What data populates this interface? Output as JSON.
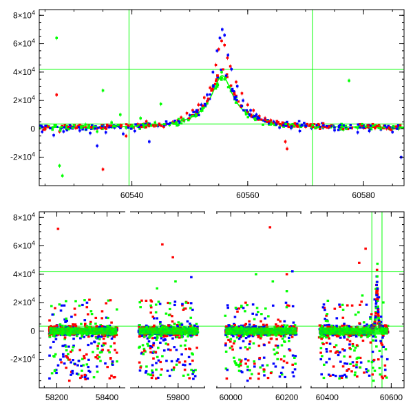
{
  "colors": {
    "red": "#ff0000",
    "blue": "#0000ff",
    "green": "#00ff00",
    "fit": "#00ff00",
    "frame": "#000000"
  },
  "chart_data": [
    {
      "id": "top-panel",
      "type": "scatter",
      "title": "",
      "xlabel": "",
      "ylabel": "",
      "xlim": [
        60524,
        60587
      ],
      "ylim": [
        -40000,
        84000
      ],
      "xticks_major": [
        60540,
        60560,
        60580
      ],
      "xticks_minor_step": 5,
      "yticks": [
        {
          "value": -20000,
          "mant": "-2",
          "exp": "4"
        },
        {
          "value": 0,
          "mant": "0",
          "exp": ""
        },
        {
          "value": 20000,
          "mant": "2",
          "exp": "4"
        },
        {
          "value": 40000,
          "mant": "4",
          "exp": "4"
        },
        {
          "value": 60000,
          "mant": "6",
          "exp": "4"
        },
        {
          "value": 80000,
          "mant": "8",
          "exp": "4"
        }
      ],
      "yminor_step": 5000,
      "reference_lines": {
        "horizontal": [
          42000,
          3500
        ],
        "vertical": [
          60539.5,
          60571.2
        ]
      },
      "fit_curve": {
        "t0": 60555.6,
        "u0": 0.18,
        "tE": 9.5,
        "base": 1000,
        "fs": 7900
      },
      "series": [
        {
          "color": "red",
          "points": [
            [
              60525,
              -300
            ],
            [
              60526.2,
              500
            ],
            [
              60527,
              24000
            ],
            [
              60527.5,
              -1800
            ],
            [
              60529,
              800
            ],
            [
              60530.3,
              600
            ],
            [
              60532,
              1200
            ],
            [
              60533.5,
              300
            ],
            [
              60535,
              -28500
            ],
            [
              60536.5,
              1800
            ],
            [
              60538,
              2400
            ],
            [
              60539,
              -5000
            ],
            [
              60541,
              3200
            ],
            [
              60542.5,
              5200
            ],
            [
              60544,
              2800
            ],
            [
              60545.5,
              1500
            ],
            [
              60547,
              4500
            ],
            [
              60548.5,
              8000
            ],
            [
              60549.5,
              11000
            ],
            [
              60550.5,
              13000
            ],
            [
              60551.5,
              17000
            ],
            [
              60552.5,
              22000
            ],
            [
              60553.5,
              29000
            ],
            [
              60554.5,
              45000
            ],
            [
              60555,
              56000
            ],
            [
              60555.5,
              62000
            ],
            [
              60556,
              59000
            ],
            [
              60556.5,
              50000
            ],
            [
              60557,
              44000
            ],
            [
              60558,
              33000
            ],
            [
              60559,
              25000
            ],
            [
              60560,
              17000
            ],
            [
              60561,
              13000
            ],
            [
              60562,
              9000
            ],
            [
              60563,
              7500
            ],
            [
              60564,
              6000
            ],
            [
              60565,
              4200
            ],
            [
              60566,
              3000
            ],
            [
              60566.5,
              -9000
            ],
            [
              60566.8,
              -14000
            ],
            [
              60568,
              2500
            ],
            [
              60569,
              1800
            ],
            [
              60570,
              1500
            ],
            [
              60572,
              1200
            ],
            [
              60574,
              1100
            ],
            [
              60576,
              900
            ],
            [
              60578,
              700
            ],
            [
              60580,
              800
            ],
            [
              60582,
              500
            ],
            [
              60584,
              300
            ],
            [
              60586,
              200
            ]
          ]
        },
        {
          "color": "blue",
          "points": [
            [
              60524.5,
              -2000
            ],
            [
              60526.5,
              -4500
            ],
            [
              60528.2,
              -1800
            ],
            [
              60529.5,
              1500
            ],
            [
              60531,
              -1200
            ],
            [
              60532.8,
              -3000
            ],
            [
              60534,
              -12000
            ],
            [
              60535.5,
              -2500
            ],
            [
              60537,
              1000
            ],
            [
              60538.5,
              -3500
            ],
            [
              60540.5,
              -1500
            ],
            [
              60543,
              -9000
            ],
            [
              60544.5,
              2000
            ],
            [
              60546,
              3500
            ],
            [
              60548,
              3000
            ],
            [
              60549,
              6000
            ],
            [
              60550,
              9500
            ],
            [
              60551,
              12000
            ],
            [
              60552,
              17000
            ],
            [
              60553,
              24000
            ],
            [
              60554,
              40000
            ],
            [
              60554.7,
              55000
            ],
            [
              60555.2,
              64000
            ],
            [
              60555.6,
              70000
            ],
            [
              60556,
              66000
            ],
            [
              60556.6,
              52000
            ],
            [
              60557.2,
              42000
            ],
            [
              60558.2,
              30000
            ],
            [
              60559.2,
              20000
            ],
            [
              60560.5,
              13000
            ],
            [
              60561.5,
              10000
            ],
            [
              60563,
              6500
            ],
            [
              60564.5,
              5000
            ],
            [
              60565.5,
              1000
            ],
            [
              60567.5,
              500
            ],
            [
              60569,
              -1500
            ],
            [
              60571,
              600
            ],
            [
              60573,
              800
            ],
            [
              60575,
              -1000
            ],
            [
              60577,
              600
            ],
            [
              60579,
              -2500
            ],
            [
              60581,
              -1500
            ],
            [
              60583,
              -400
            ],
            [
              60585,
              -2200
            ],
            [
              60586.5,
              -20000
            ]
          ]
        },
        {
          "color": "green",
          "points": [
            [
              60524,
              300
            ],
            [
              60525.5,
              1500
            ],
            [
              60527,
              64000
            ],
            [
              60527.5,
              -26000
            ],
            [
              60528,
              -33000
            ],
            [
              60528.5,
              1200
            ],
            [
              60530,
              2000
            ],
            [
              60532,
              3000
            ],
            [
              60534,
              -1800
            ],
            [
              60535,
              27000
            ],
            [
              60536.5,
              4500
            ],
            [
              60538,
              10000
            ],
            [
              60539,
              800
            ],
            [
              60540,
              2200
            ],
            [
              60541.5,
              7500
            ],
            [
              60542,
              2000
            ],
            [
              60544,
              4500
            ],
            [
              60545,
              17500
            ],
            [
              60546.5,
              2800
            ],
            [
              60548,
              3000
            ],
            [
              60549,
              5500
            ],
            [
              60550,
              7500
            ],
            [
              60551,
              9000
            ],
            [
              60552,
              13000
            ],
            [
              60553,
              18000
            ],
            [
              60554,
              30000
            ],
            [
              60554.8,
              36000
            ],
            [
              60555.5,
              40000
            ],
            [
              60556.2,
              36000
            ],
            [
              60557,
              30000
            ],
            [
              60558,
              22000
            ],
            [
              60559,
              16000
            ],
            [
              60560,
              12000
            ],
            [
              60561,
              9000
            ],
            [
              60562,
              7000
            ],
            [
              60563,
              5500
            ],
            [
              60564,
              4500
            ],
            [
              60565,
              3500
            ],
            [
              60566,
              3000
            ],
            [
              60567.5,
              2500
            ],
            [
              60569,
              2000
            ],
            [
              60571,
              1500
            ],
            [
              60573,
              1200
            ],
            [
              60575,
              1000
            ],
            [
              60576.5,
              -500
            ],
            [
              60577.5,
              34000
            ],
            [
              60579,
              700
            ],
            [
              60581,
              500
            ],
            [
              60583,
              300
            ],
            [
              60585,
              200
            ],
            [
              60586,
              100
            ]
          ]
        }
      ]
    },
    {
      "id": "bottom-panel",
      "type": "scatter",
      "title": "",
      "xlabel": "",
      "ylabel": "",
      "x_axis_broken": true,
      "segments": [
        {
          "xlim": [
            58130,
            58470
          ],
          "ticks": [
            58200,
            58400
          ]
        },
        {
          "xlim": [
            59620,
            59900
          ],
          "ticks": [
            59800
          ]
        },
        {
          "xlim": [
            59950,
            60250
          ],
          "ticks": [
            60000,
            60200
          ]
        },
        {
          "xlim": [
            60350,
            60640
          ],
          "ticks": [
            60400,
            60600
          ]
        }
      ],
      "ylim": [
        -40000,
        84000
      ],
      "yticks": [
        {
          "value": -20000,
          "mant": "-2",
          "exp": "4"
        },
        {
          "value": 0,
          "mant": "0",
          "exp": ""
        },
        {
          "value": 20000,
          "mant": "2",
          "exp": "4"
        },
        {
          "value": 40000,
          "mant": "4",
          "exp": "4"
        },
        {
          "value": 60000,
          "mant": "6",
          "exp": "4"
        },
        {
          "value": 80000,
          "mant": "8",
          "exp": "4"
        }
      ],
      "yminor_step": 5000,
      "reference_lines": {
        "horizontal": [
          42000,
          3500
        ],
        "vertical": [
          60539.5,
          60571.2
        ]
      },
      "seasons": [
        {
          "start": 58170,
          "end": 58440,
          "outliers": {
            "red": [
              [
                58205,
                72000
              ],
              [
                58330,
                22000
              ],
              [
                58250,
                -35000
              ],
              [
                58380,
                9000
              ]
            ],
            "blue": [
              [
                58230,
                18000
              ],
              [
                58280,
                -30000
              ],
              [
                58360,
                -25000
              ]
            ],
            "green": [
              [
                58190,
                -18000
              ],
              [
                58300,
                -28000
              ],
              [
                58340,
                12000
              ],
              [
                58410,
                -15000
              ]
            ]
          }
        },
        {
          "start": 59650,
          "end": 59875,
          "outliers": {
            "red": [
              [
                59740,
                61000
              ],
              [
                59780,
                52000
              ],
              [
                59700,
                -33000
              ],
              [
                59820,
                15000
              ]
            ],
            "blue": [
              [
                59850,
                38000
              ],
              [
                59760,
                -28000
              ],
              [
                59800,
                -20000
              ]
            ],
            "green": [
              [
                59720,
                30000
              ],
              [
                59790,
                35000
              ],
              [
                59680,
                -25000
              ],
              [
                59830,
                20000
              ]
            ]
          }
        },
        {
          "start": 59980,
          "end": 60235,
          "outliers": {
            "red": [
              [
                60140,
                73000
              ],
              [
                60200,
                40000
              ],
              [
                60100,
                -30000
              ],
              [
                60180,
                -20000
              ]
            ],
            "blue": [
              [
                60220,
                42000
              ],
              [
                60060,
                -35000
              ],
              [
                60160,
                -25000
              ]
            ],
            "green": [
              [
                60090,
                40000
              ],
              [
                60150,
                35000
              ],
              [
                60030,
                -28000
              ],
              [
                60200,
                28000
              ]
            ]
          }
        },
        {
          "start": 60375,
          "end": 60590,
          "outliers": {
            "red": [
              [
                60500,
                48000
              ],
              [
                60520,
                58000
              ],
              [
                60420,
                -25000
              ],
              [
                60560,
                -20000
              ]
            ],
            "blue": [
              [
                60480,
                -22000
              ],
              [
                60570,
                -18000
              ],
              [
                60440,
                -15000
              ]
            ],
            "green": [
              [
                60400,
                12000
              ],
              [
                60450,
                15000
              ],
              [
                60510,
                25000
              ],
              [
                60545,
                -35000
              ]
            ]
          }
        }
      ]
    }
  ]
}
